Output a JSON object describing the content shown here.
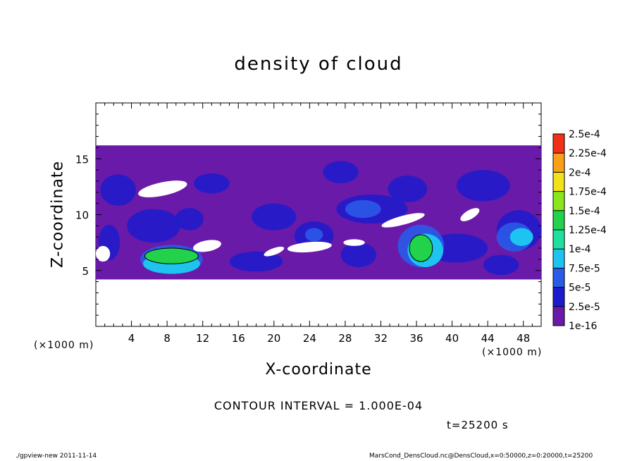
{
  "chart_data": {
    "type": "heatmap",
    "title": "density of cloud",
    "xlabel": "X-coordinate",
    "ylabel": "Z-coordinate",
    "x_unit_left": "(×1000 m)",
    "x_unit_right": "(×1000 m)",
    "xlim": [
      0,
      50
    ],
    "ylim": [
      0,
      20
    ],
    "x_ticks": [
      "4",
      "8",
      "12",
      "16",
      "20",
      "24",
      "28",
      "32",
      "36",
      "40",
      "44",
      "48"
    ],
    "y_ticks": [
      "5",
      "10",
      "15"
    ],
    "colorbar": {
      "labels": [
        "1e-16",
        "2.5e-5",
        "5e-5",
        "7.5e-5",
        "1e-4",
        "1.25e-4",
        "1.5e-4",
        "1.75e-4",
        "2e-4",
        "2.25e-4",
        "2.5e-4"
      ],
      "levels": [
        1e-16,
        2.5e-05,
        5e-05,
        7.5e-05,
        0.0001,
        0.000125,
        0.00015,
        0.000175,
        0.0002,
        0.000225,
        0.00025
      ],
      "colors": [
        "#6a1aa8",
        "#1c1ccc",
        "#2a5ae8",
        "#1ec4f0",
        "#1ee0a0",
        "#22d24a",
        "#88e61a",
        "#f2e21a",
        "#f8a018",
        "#f2301a",
        "#f8a0a8"
      ]
    },
    "cloud_layer": {
      "z_bottom": 4.2,
      "z_top": 16.2
    },
    "maxima": [
      {
        "x": 8.5,
        "z": 6.3,
        "value": 0.00014
      },
      {
        "x": 36.5,
        "z": 7.0,
        "value": 0.00013
      }
    ],
    "contour_interval": "CONTOUR INTERVAL = 1.000E-04",
    "time_label": "t=25200 s"
  },
  "footer": {
    "left": "./gpview-new  2011-11-14",
    "right": "MarsCond_DensCloud.nc@DensCloud,x=0:50000,z=0:20000,t=25200"
  }
}
